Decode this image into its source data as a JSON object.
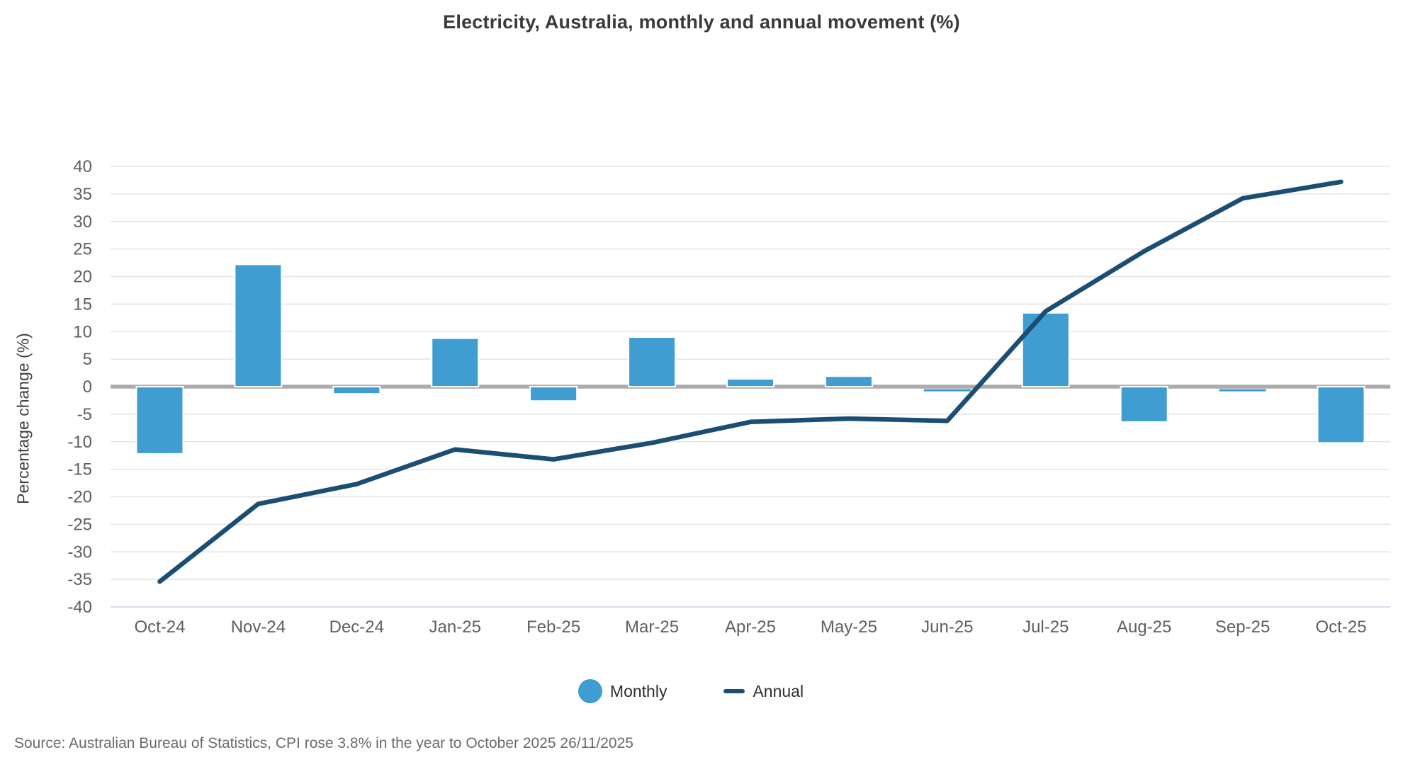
{
  "page": {
    "source_note": "Source: Australian Bureau of Statistics, CPI rose 3.8% in the year to October 2025 26/11/2025"
  },
  "chart_data": {
    "type": "combo",
    "title": "Electricity, Australia, monthly and annual movement (%)",
    "xlabel": "",
    "ylabel": "Percentage change (%)",
    "categories": [
      "Oct-24",
      "Nov-24",
      "Dec-24",
      "Jan-25",
      "Feb-25",
      "Mar-25",
      "Apr-25",
      "May-25",
      "Jun-25",
      "Jul-25",
      "Aug-25",
      "Sep-25",
      "Oct-25"
    ],
    "series": [
      {
        "name": "Monthly",
        "type": "bar",
        "color": "#3F9DD2",
        "values": [
          -12.2,
          22.2,
          -1.3,
          8.8,
          -2.6,
          9.0,
          1.4,
          1.9,
          -0.4,
          13.4,
          -6.4,
          -0.4,
          -10.2
        ]
      },
      {
        "name": "Annual",
        "type": "line",
        "color": "#1C4E74",
        "values": [
          -35.4,
          -21.3,
          -17.7,
          -11.4,
          -13.2,
          -10.2,
          -6.4,
          -5.8,
          -6.2,
          13.7,
          24.6,
          34.2,
          37.2
        ]
      }
    ],
    "y_axis": {
      "min": -40,
      "max": 40,
      "step": 5,
      "ticks": [
        40,
        35,
        30,
        25,
        20,
        15,
        10,
        5,
        0,
        -5,
        -10,
        -15,
        -20,
        -25,
        -30,
        -35,
        -40
      ]
    },
    "legend": {
      "position": "bottom-center",
      "entries": [
        "Monthly",
        "Annual"
      ]
    },
    "grid": true
  }
}
